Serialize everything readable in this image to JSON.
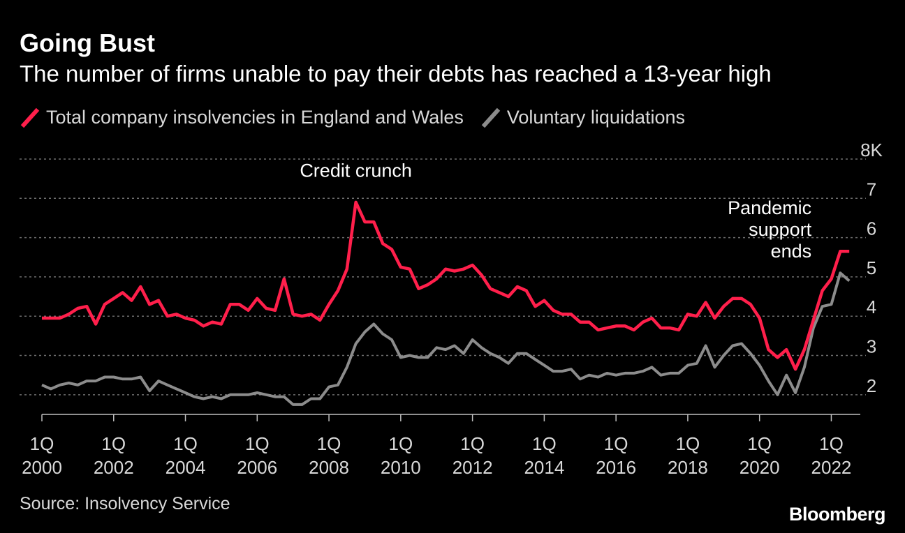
{
  "header": {
    "title": "Going Bust",
    "subtitle": "The number of firms unable to pay their debts has reached a 13-year high"
  },
  "legend": [
    {
      "label": "Total company insolvencies in England and Wales",
      "color": "#ff1f4b"
    },
    {
      "label": "Voluntary liquidations",
      "color": "#8c8c8c"
    }
  ],
  "footer": {
    "source": "Source: Insolvency Service",
    "brand": "Bloomberg"
  },
  "chart_data": {
    "type": "line",
    "x_start": 2000.0,
    "x_step": 0.25,
    "xlim": [
      2000.0,
      2022.75
    ],
    "ylim": [
      1.5,
      8
    ],
    "y_ticks": [
      {
        "value": 2,
        "label": "2"
      },
      {
        "value": 3,
        "label": "3"
      },
      {
        "value": 4,
        "label": "4"
      },
      {
        "value": 5,
        "label": "5"
      },
      {
        "value": 6,
        "label": "6"
      },
      {
        "value": 7,
        "label": "7"
      },
      {
        "value": 8,
        "label": "8K"
      }
    ],
    "x_ticks": [
      {
        "value": 2000,
        "line1": "1Q",
        "line2": "2000"
      },
      {
        "value": 2002,
        "line1": "1Q",
        "line2": "2002"
      },
      {
        "value": 2004,
        "line1": "1Q",
        "line2": "2004"
      },
      {
        "value": 2006,
        "line1": "1Q",
        "line2": "2006"
      },
      {
        "value": 2008,
        "line1": "1Q",
        "line2": "2008"
      },
      {
        "value": 2010,
        "line1": "1Q",
        "line2": "2010"
      },
      {
        "value": 2012,
        "line1": "1Q",
        "line2": "2012"
      },
      {
        "value": 2014,
        "line1": "1Q",
        "line2": "2014"
      },
      {
        "value": 2016,
        "line1": "1Q",
        "line2": "2016"
      },
      {
        "value": 2018,
        "line1": "1Q",
        "line2": "2018"
      },
      {
        "value": 2020,
        "line1": "1Q",
        "line2": "2020"
      },
      {
        "value": 2022,
        "line1": "1Q",
        "line2": "2022"
      }
    ],
    "series": [
      {
        "name": "Total company insolvencies in England and Wales",
        "color": "#ff1f4b",
        "values": [
          3.95,
          3.95,
          3.95,
          4.05,
          4.2,
          4.25,
          3.8,
          4.3,
          4.45,
          4.6,
          4.4,
          4.75,
          4.3,
          4.4,
          4.0,
          4.05,
          3.95,
          3.9,
          3.75,
          3.85,
          3.8,
          4.3,
          4.3,
          4.15,
          4.45,
          4.2,
          4.15,
          4.95,
          4.05,
          4.0,
          4.05,
          3.9,
          4.3,
          4.65,
          5.2,
          6.9,
          6.4,
          6.4,
          5.85,
          5.7,
          5.25,
          5.2,
          4.7,
          4.8,
          4.95,
          5.2,
          5.15,
          5.2,
          5.3,
          5.05,
          4.7,
          4.6,
          4.5,
          4.75,
          4.65,
          4.25,
          4.4,
          4.15,
          4.05,
          4.05,
          3.85,
          3.85,
          3.65,
          3.7,
          3.75,
          3.75,
          3.65,
          3.85,
          3.95,
          3.7,
          3.7,
          3.65,
          4.05,
          4.0,
          4.35,
          3.95,
          4.25,
          4.45,
          4.45,
          4.3,
          3.95,
          3.15,
          2.95,
          3.15,
          2.65,
          3.15,
          3.9,
          4.65,
          4.95,
          5.65,
          5.65
        ]
      },
      {
        "name": "Voluntary liquidations",
        "color": "#8c8c8c",
        "values": [
          2.25,
          2.15,
          2.25,
          2.3,
          2.25,
          2.35,
          2.35,
          2.45,
          2.45,
          2.4,
          2.4,
          2.45,
          2.1,
          2.35,
          2.25,
          2.15,
          2.05,
          1.95,
          1.9,
          1.95,
          1.9,
          2.0,
          2.0,
          2.0,
          2.05,
          2.0,
          1.95,
          1.95,
          1.75,
          1.75,
          1.9,
          1.9,
          2.2,
          2.25,
          2.7,
          3.3,
          3.6,
          3.8,
          3.55,
          3.4,
          2.95,
          3.0,
          2.95,
          2.95,
          3.2,
          3.15,
          3.25,
          3.05,
          3.4,
          3.2,
          3.05,
          2.95,
          2.8,
          3.05,
          3.05,
          2.9,
          2.75,
          2.6,
          2.6,
          2.65,
          2.4,
          2.5,
          2.45,
          2.55,
          2.5,
          2.55,
          2.55,
          2.6,
          2.7,
          2.5,
          2.55,
          2.55,
          2.75,
          2.8,
          3.25,
          2.7,
          3.0,
          3.25,
          3.3,
          3.05,
          2.75,
          2.35,
          2.0,
          2.5,
          2.05,
          2.7,
          3.7,
          4.25,
          4.3,
          5.1,
          4.9
        ]
      }
    ],
    "annotations": [
      {
        "lines": [
          "Credit crunch"
        ],
        "x": 2008.75,
        "y": 7.55,
        "align": "middle"
      },
      {
        "lines": [
          "Pandemic",
          "support",
          "ends"
        ],
        "x": 2021.45,
        "y": 6.6,
        "align": "end"
      }
    ]
  }
}
